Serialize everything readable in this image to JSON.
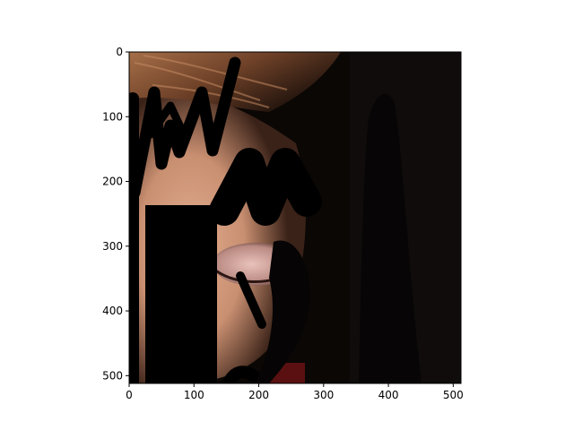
{
  "figure": {
    "background": "#ffffff",
    "axes_color": "#000000",
    "content": "photo-eye-closeup-with-black-mask-strokes"
  },
  "image_axes": {
    "xlim": [
      0,
      512
    ],
    "ylim": [
      512,
      0
    ],
    "x_ticks": [
      {
        "value": 0,
        "label": "0"
      },
      {
        "value": 100,
        "label": "100"
      },
      {
        "value": 200,
        "label": "200"
      },
      {
        "value": 300,
        "label": "300"
      },
      {
        "value": 400,
        "label": "400"
      },
      {
        "value": 500,
        "label": "500"
      }
    ],
    "y_ticks": [
      {
        "value": 0,
        "label": "0"
      },
      {
        "value": 100,
        "label": "100"
      },
      {
        "value": 200,
        "label": "200"
      },
      {
        "value": 300,
        "label": "300"
      },
      {
        "value": 400,
        "label": "400"
      },
      {
        "value": 500,
        "label": "500"
      }
    ]
  },
  "colors": {
    "hair": "#8a5a3c",
    "skin": "#d9a485",
    "eyelid": "#d6a5a0",
    "dark_background": "#0b0705",
    "mask": "#000000"
  }
}
